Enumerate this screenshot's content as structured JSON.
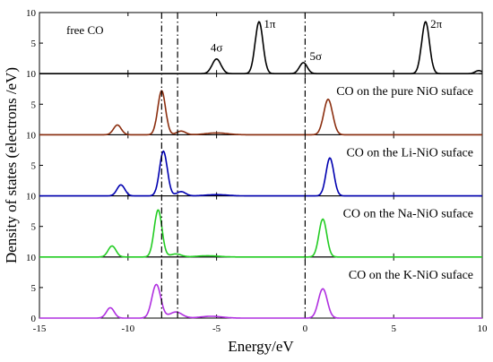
{
  "chart_data": {
    "type": "line",
    "xlabel": "Energy/eV",
    "ylabel": "Density of states (electrons /eV)",
    "xlim": [
      -15,
      10
    ],
    "x_ticks": [
      "-15",
      "-10",
      "-5",
      "0",
      "5",
      "10"
    ],
    "panel_ylim": [
      0,
      10
    ],
    "panel_ticks": [
      "0",
      "5",
      "10"
    ],
    "reference_lines_x": [
      -8.1,
      -7.2,
      0
    ],
    "panels": [
      {
        "label": "free CO",
        "color": "#000000",
        "peaks": [
          {
            "x": -5.0,
            "y": 2.4,
            "w": 0.25
          },
          {
            "x": -2.6,
            "y": 8.5,
            "w": 0.22
          },
          {
            "x": -0.1,
            "y": 1.8,
            "w": 0.22
          },
          {
            "x": 6.8,
            "y": 8.5,
            "w": 0.22
          },
          {
            "x": 9.8,
            "y": 0.5,
            "w": 0.2
          }
        ],
        "annotations": [
          {
            "text": "4σ",
            "x": -5.0,
            "y": 3.6
          },
          {
            "text": "1π",
            "x": -2.0,
            "y": 7.5
          },
          {
            "text": "5σ",
            "x": 0.6,
            "y": 2.2
          },
          {
            "text": "2π",
            "x": 7.4,
            "y": 7.5
          }
        ]
      },
      {
        "label": "CO on the pure NiO suface",
        "color": "#8b2e0f",
        "peaks": [
          {
            "x": -10.6,
            "y": 1.6,
            "w": 0.22
          },
          {
            "x": -8.1,
            "y": 7.2,
            "w": 0.22
          },
          {
            "x": -7.0,
            "y": 0.6,
            "w": 0.25
          },
          {
            "x": -5.0,
            "y": 0.3,
            "w": 0.6
          },
          {
            "x": 1.3,
            "y": 5.8,
            "w": 0.25
          }
        ],
        "annotations": []
      },
      {
        "label": "CO on the Li-NiO suface",
        "color": "#0000b0",
        "peaks": [
          {
            "x": -10.4,
            "y": 1.8,
            "w": 0.22
          },
          {
            "x": -8.0,
            "y": 7.3,
            "w": 0.22
          },
          {
            "x": -7.0,
            "y": 0.7,
            "w": 0.25
          },
          {
            "x": -5.0,
            "y": 0.2,
            "w": 0.6
          },
          {
            "x": 1.4,
            "y": 6.2,
            "w": 0.22
          }
        ],
        "annotations": []
      },
      {
        "label": "CO on the Na-NiO suface",
        "color": "#22cc22",
        "peaks": [
          {
            "x": -10.9,
            "y": 1.8,
            "w": 0.22
          },
          {
            "x": -8.3,
            "y": 7.7,
            "w": 0.22
          },
          {
            "x": -7.3,
            "y": 0.5,
            "w": 0.3
          },
          {
            "x": -5.5,
            "y": 0.2,
            "w": 0.6
          },
          {
            "x": 1.0,
            "y": 6.2,
            "w": 0.22
          }
        ],
        "annotations": []
      },
      {
        "label": "CO on the K-NiO suface",
        "color": "#b030e0",
        "peaks": [
          {
            "x": -11.0,
            "y": 1.7,
            "w": 0.22
          },
          {
            "x": -8.4,
            "y": 5.5,
            "w": 0.25
          },
          {
            "x": -7.3,
            "y": 1.0,
            "w": 0.35
          },
          {
            "x": -5.3,
            "y": 0.3,
            "w": 0.6
          },
          {
            "x": 1.0,
            "y": 4.8,
            "w": 0.25
          }
        ],
        "annotations": []
      }
    ]
  }
}
